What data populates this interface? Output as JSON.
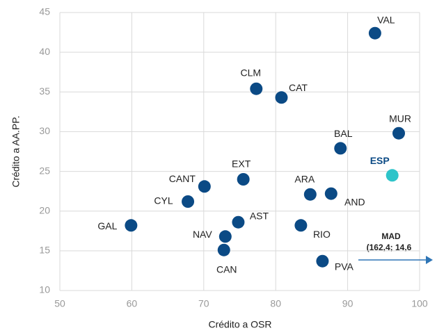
{
  "chart_data": {
    "type": "scatter",
    "x_label": "Crédito a OSR",
    "y_label": "Crédito a AA.PP.",
    "xlim": [
      50,
      100
    ],
    "xticks": [
      50,
      60,
      70,
      80,
      90,
      100
    ],
    "ylim": [
      10,
      45
    ],
    "yticks": [
      10,
      15,
      20,
      25,
      30,
      35,
      40,
      45
    ],
    "grid": true,
    "points": [
      {
        "label": "VAL",
        "x": 93.8,
        "y": 42.4,
        "color": "#0b4a85"
      },
      {
        "label": "CLM",
        "x": 77.3,
        "y": 35.4,
        "color": "#0b4a85"
      },
      {
        "label": "CAT",
        "x": 80.8,
        "y": 34.3,
        "color": "#0b4a85"
      },
      {
        "label": "MUR",
        "x": 97.1,
        "y": 29.8,
        "color": "#0b4a85"
      },
      {
        "label": "BAL",
        "x": 89.0,
        "y": 27.9,
        "color": "#0b4a85"
      },
      {
        "label": "ESP",
        "x": 96.2,
        "y": 24.5,
        "color": "#2ec4c9",
        "bold": true
      },
      {
        "label": "EXT",
        "x": 75.5,
        "y": 24.0,
        "color": "#0b4a85"
      },
      {
        "label": "CANT",
        "x": 70.1,
        "y": 23.1,
        "color": "#0b4a85"
      },
      {
        "label": "ARA",
        "x": 84.8,
        "y": 22.1,
        "color": "#0b4a85"
      },
      {
        "label": "AND",
        "x": 87.7,
        "y": 22.2,
        "color": "#0b4a85"
      },
      {
        "label": "CYL",
        "x": 67.8,
        "y": 21.2,
        "color": "#0b4a85"
      },
      {
        "label": "GAL",
        "x": 59.9,
        "y": 18.2,
        "color": "#0b4a85"
      },
      {
        "label": "AST",
        "x": 74.8,
        "y": 18.6,
        "color": "#0b4a85"
      },
      {
        "label": "RIO",
        "x": 83.5,
        "y": 18.2,
        "color": "#0b4a85"
      },
      {
        "label": "NAV",
        "x": 73.0,
        "y": 16.8,
        "color": "#0b4a85"
      },
      {
        "label": "CAN",
        "x": 72.8,
        "y": 15.1,
        "color": "#0b4a85"
      },
      {
        "label": "PVA",
        "x": 86.5,
        "y": 13.7,
        "color": "#0b4a85"
      }
    ],
    "annotation": {
      "title": "MAD",
      "text": "(162,4;  14,6",
      "color": "#2e75b6"
    }
  }
}
